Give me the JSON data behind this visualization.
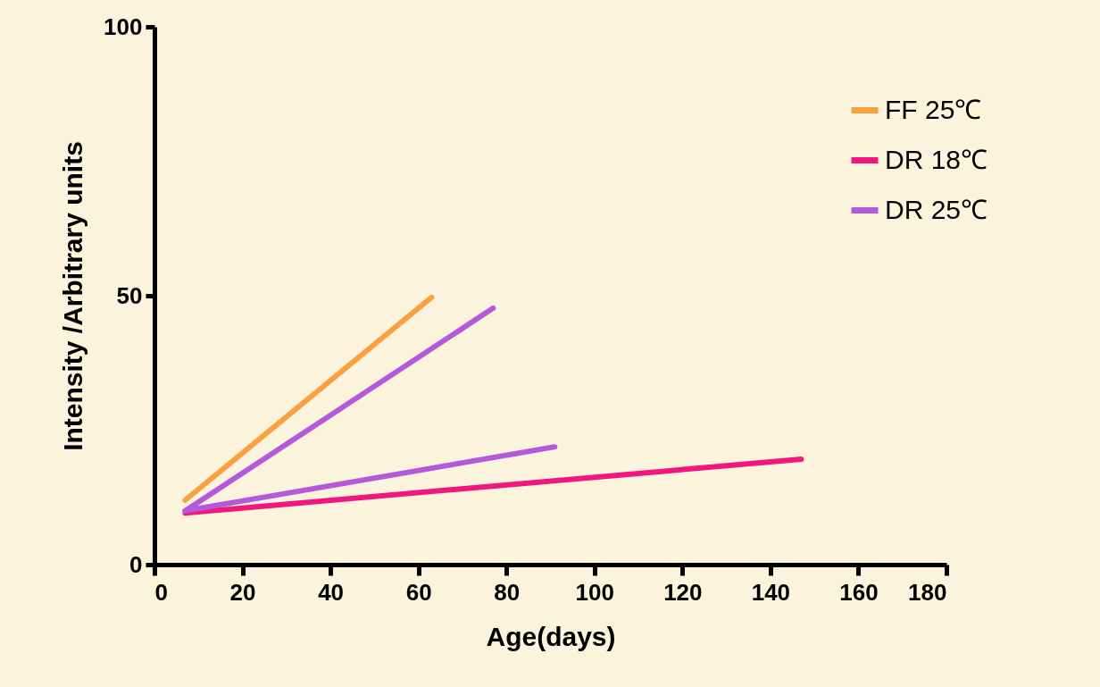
{
  "chart_data": {
    "type": "line",
    "xlabel": "Age(days)",
    "ylabel": "Intensity /Arbitrary units",
    "xlim": [
      0,
      180
    ],
    "xticks": [
      0,
      20,
      40,
      60,
      80,
      100,
      120,
      140,
      160,
      180
    ],
    "ylim": [
      0,
      100
    ],
    "yticks": [
      0,
      50,
      100
    ],
    "grid": false,
    "legend": "top right",
    "marker": "none",
    "line_style": "solid",
    "series": [
      {
        "name": "FF 25℃",
        "color": "#f9a040",
        "x": [
          7,
          63
        ],
        "values": [
          12,
          49.7
        ]
      },
      {
        "name": "DR 18℃",
        "color": "#f0187f",
        "x": [
          7,
          147
        ],
        "values": [
          9.6,
          19.6
        ]
      },
      {
        "name": "DR 25℃",
        "color": "#b459d9",
        "x": [
          7,
          77
        ],
        "values": [
          10,
          47.7
        ]
      },
      {
        "color": "#b459d9",
        "x": [
          7,
          91
        ],
        "values": [
          10,
          21.9
        ]
      }
    ]
  }
}
